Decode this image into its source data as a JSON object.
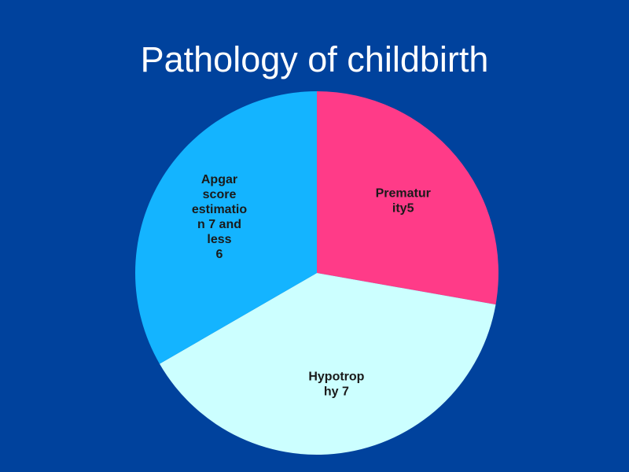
{
  "slide": {
    "title": "Pathology of childbirth"
  },
  "chart_data": {
    "type": "pie",
    "title": "Pathology of childbirth",
    "slices": [
      {
        "name": "Prematurity",
        "value": 5,
        "color": "#ff3b88",
        "label_lines": [
          "Prematur",
          "ity5"
        ]
      },
      {
        "name": "Hypotrophy",
        "value": 7,
        "color": "#ccffff",
        "label_lines": [
          "Hypotrop",
          "hy 7"
        ]
      },
      {
        "name": "Apgar score estimation 7 and less",
        "value": 6,
        "color": "#14b4ff",
        "label_lines": [
          "Apgar",
          "score",
          "estimatio",
          "n 7 and",
          "less",
          "6"
        ]
      }
    ],
    "start_angle_deg": -90,
    "direction": "clockwise"
  }
}
